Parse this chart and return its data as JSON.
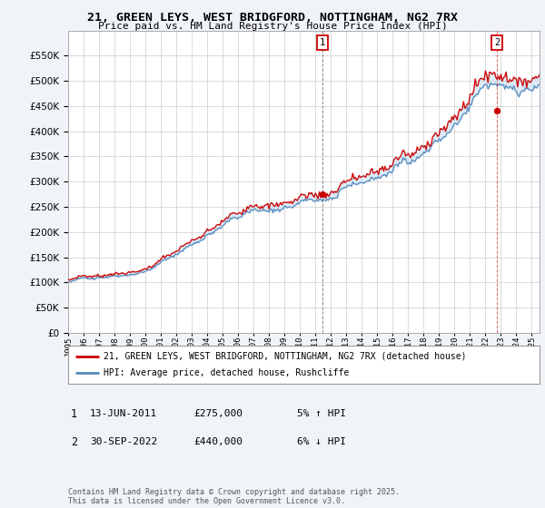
{
  "title": "21, GREEN LEYS, WEST BRIDGFORD, NOTTINGHAM, NG2 7RX",
  "subtitle": "Price paid vs. HM Land Registry's House Price Index (HPI)",
  "legend_line1": "21, GREEN LEYS, WEST BRIDGFORD, NOTTINGHAM, NG2 7RX (detached house)",
  "legend_line2": "HPI: Average price, detached house, Rushcliffe",
  "annotation1_date": "13-JUN-2011",
  "annotation1_price": "£275,000",
  "annotation1_pct": "5% ↑ HPI",
  "annotation2_date": "30-SEP-2022",
  "annotation2_price": "£440,000",
  "annotation2_pct": "6% ↓ HPI",
  "footer": "Contains HM Land Registry data © Crown copyright and database right 2025.\nThis data is licensed under the Open Government Licence v3.0.",
  "red_color": "#cc0000",
  "blue_color": "#5588bb",
  "fill_color": "#d0e4f5",
  "background_color": "#f0f4f8",
  "plot_bg_color": "#ffffff",
  "grid_color": "#cccccc",
  "ylim_min": 0,
  "ylim_max": 600000,
  "yticks": [
    0,
    50000,
    100000,
    150000,
    200000,
    250000,
    300000,
    350000,
    400000,
    450000,
    500000,
    550000
  ],
  "start_year": 1995,
  "end_year": 2025,
  "ann1_year": 2011.458,
  "ann2_year": 2022.75,
  "ann1_price": 275000,
  "ann2_price": 440000
}
